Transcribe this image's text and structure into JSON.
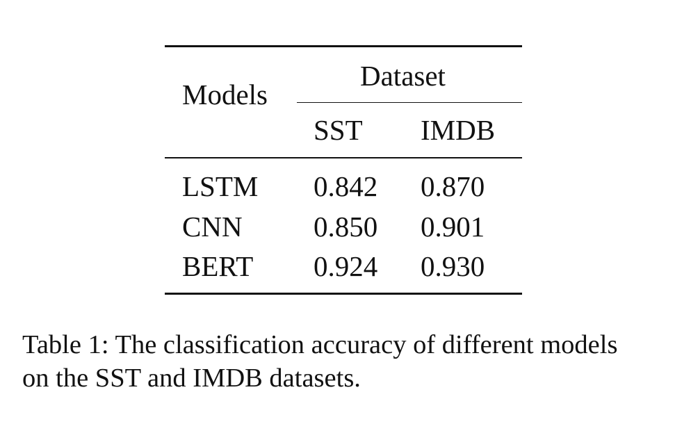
{
  "table": {
    "header": {
      "models": "Models",
      "dataset": "Dataset",
      "columns": [
        "SST",
        "IMDB"
      ]
    },
    "rows": [
      {
        "model": "LSTM",
        "sst": "0.842",
        "imdb": "0.870"
      },
      {
        "model": "CNN",
        "sst": "0.850",
        "imdb": "0.901"
      },
      {
        "model": "BERT",
        "sst": "0.924",
        "imdb": "0.930"
      }
    ]
  },
  "caption": {
    "line1": "Table 1: The classification accuracy of different models",
    "line2": "on the SST and IMDB datasets."
  }
}
